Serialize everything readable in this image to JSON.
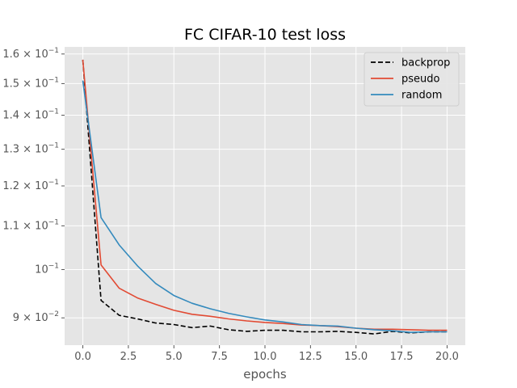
{
  "chart_data": {
    "type": "line",
    "title": "FC CIFAR-10 test loss",
    "xlabel": "epochs",
    "ylabel": "",
    "yscale": "log",
    "xlim": [
      -1.0,
      21.0
    ],
    "ylim": [
      0.0848,
      0.1625
    ],
    "x_ticks": [
      0,
      2.5,
      5,
      7.5,
      10,
      12.5,
      15,
      17.5,
      20
    ],
    "x_tick_labels": [
      "0.0",
      "2.5",
      "5.0",
      "7.5",
      "10.0",
      "12.5",
      "15.0",
      "17.5",
      "20.0"
    ],
    "y_ticks": [
      {
        "value": 0.16,
        "base": "6",
        "exp": "−2",
        "label_html": "1.6 × 10^-1",
        "mant": "1.6",
        "pow": "−1"
      },
      {
        "value": 0.15,
        "mant": "1.5",
        "pow": "−1"
      },
      {
        "value": 0.14,
        "mant": "1.4",
        "pow": "−1"
      },
      {
        "value": 0.13,
        "mant": "1.3",
        "pow": "−1"
      },
      {
        "value": 0.12,
        "mant": "1.2",
        "pow": "−1"
      },
      {
        "value": 0.11,
        "mant": "1.1",
        "pow": "−1"
      },
      {
        "value": 0.1,
        "mant": "",
        "pow": "−1"
      },
      {
        "value": 0.09,
        "mant": "9",
        "pow": "−2"
      }
    ],
    "grid": true,
    "legend_position": "top-right",
    "x": [
      0,
      1,
      2,
      3,
      4,
      5,
      6,
      7,
      8,
      9,
      10,
      11,
      12,
      13,
      14,
      15,
      16,
      17,
      18,
      19,
      20
    ],
    "series": [
      {
        "name": "backprop",
        "color": "#000000",
        "dashed": true,
        "values": [
          0.158,
          0.0935,
          0.0905,
          0.0898,
          0.089,
          0.0887,
          0.0881,
          0.0884,
          0.0877,
          0.0874,
          0.0876,
          0.0876,
          0.0873,
          0.0873,
          0.0874,
          0.0872,
          0.0869,
          0.0874,
          0.0871,
          0.0873,
          0.0873
        ]
      },
      {
        "name": "pseudo",
        "color": "#e24a33",
        "dashed": false,
        "values": [
          0.158,
          0.101,
          0.096,
          0.094,
          0.0927,
          0.0915,
          0.0907,
          0.0903,
          0.0898,
          0.0894,
          0.0891,
          0.0889,
          0.0886,
          0.0885,
          0.0883,
          0.088,
          0.0878,
          0.0878,
          0.0877,
          0.0876,
          0.0876
        ]
      },
      {
        "name": "random",
        "color": "#348abd",
        "dashed": false,
        "values": [
          0.151,
          0.112,
          0.1055,
          0.1008,
          0.097,
          0.0945,
          0.0929,
          0.0918,
          0.0909,
          0.0902,
          0.0896,
          0.0892,
          0.0887,
          0.0885,
          0.0884,
          0.088,
          0.0877,
          0.0875,
          0.0872,
          0.0873,
          0.0873
        ]
      }
    ]
  }
}
